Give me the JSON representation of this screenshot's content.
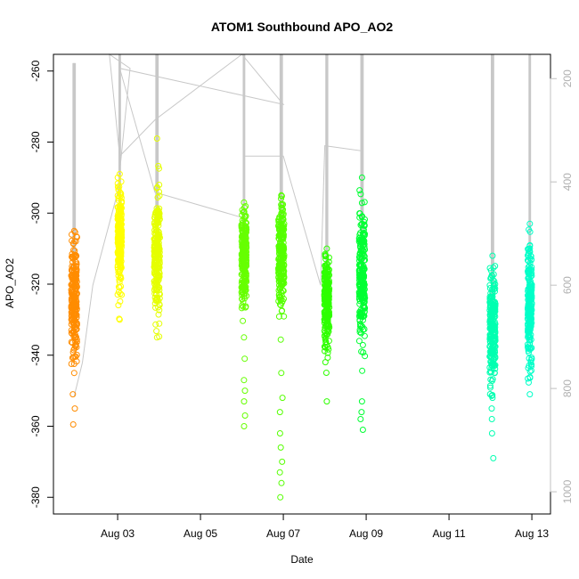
{
  "chart_data": {
    "type": "scatter",
    "title": "ATOM1 Southbound APO_AO2",
    "xlabel": "Date",
    "ylabel": "APO_AO2",
    "x_ticks": [
      "Aug 03",
      "Aug 05",
      "Aug 07",
      "Aug 09",
      "Aug 11",
      "Aug 13"
    ],
    "x_tick_days": [
      3,
      5,
      7,
      9,
      11,
      13
    ],
    "x_range_days": [
      1.45,
      13.45
    ],
    "y_ticks": [
      -380,
      -360,
      -340,
      -320,
      -300,
      -280,
      -260
    ],
    "ylim": [
      -384.7,
      -255.3
    ],
    "y2_ticks": [
      200,
      400,
      600,
      800,
      1000
    ],
    "y2lim": [
      1043,
      153
    ],
    "y2_color": "#c0c0c0",
    "grid": false,
    "clusters": [
      {
        "day": 1.95,
        "width": 0.14,
        "center": -324,
        "spread": 8,
        "min": -345,
        "max": -305,
        "color": "#ff8c00",
        "outliers": [
          -351,
          -355,
          -359.5
        ],
        "profile_top": 170,
        "profile_width": 0.06
      },
      {
        "day": 3.05,
        "width": 0.1,
        "center": -308,
        "spread": 7,
        "min": -330,
        "max": -289,
        "color": "#ffff00",
        "outliers": [],
        "profile_top": 153,
        "profile_width": 0.04
      },
      {
        "day": 3.95,
        "width": 0.14,
        "center": -312,
        "spread": 8,
        "min": -335,
        "max": -279,
        "color": "#e5ff00",
        "outliers": [],
        "profile_top": 153,
        "profile_width": 0.06
      },
      {
        "day": 6.05,
        "width": 0.12,
        "center": -313,
        "spread": 7,
        "min": -335,
        "max": -297,
        "color": "#66ff00",
        "outliers": [
          -341,
          -347,
          -350,
          -353,
          -357,
          -360
        ],
        "profile_top": 153,
        "profile_width": 0.04
      },
      {
        "day": 6.95,
        "width": 0.14,
        "center": -313,
        "spread": 8,
        "min": -345,
        "max": -295,
        "color": "#55ff00",
        "outliers": [
          -352,
          -356,
          -362,
          -366,
          -370,
          -373,
          -376,
          -380
        ],
        "profile_top": 153,
        "profile_width": 0.06
      },
      {
        "day": 8.05,
        "width": 0.12,
        "center": -325,
        "spread": 6,
        "min": -353,
        "max": -310,
        "color": "#2eff00",
        "outliers": [],
        "profile_top": 153,
        "profile_width": 0.05
      },
      {
        "day": 8.9,
        "width": 0.14,
        "center": -318,
        "spread": 9,
        "min": -353,
        "max": -290,
        "color": "#00ff33",
        "outliers": [
          -356,
          -358,
          -361
        ],
        "profile_top": 153,
        "profile_width": 0.06
      },
      {
        "day": 12.05,
        "width": 0.14,
        "center": -333,
        "spread": 8,
        "min": -352,
        "max": -312,
        "color": "#00ffb0",
        "outliers": [
          -355,
          -358,
          -362,
          -369
        ],
        "profile_top": 153,
        "profile_width": 0.06
      },
      {
        "day": 12.95,
        "width": 0.1,
        "center": -327,
        "spread": 8,
        "min": -351,
        "max": -303,
        "color": "#00ffc8",
        "outliers": [],
        "profile_top": 153,
        "profile_width": 0.04
      }
    ],
    "track_line": [
      [
        1.95,
        815
      ],
      [
        2.15,
        750
      ],
      [
        2.4,
        600
      ],
      [
        3.0,
        420
      ],
      [
        3.3,
        180
      ],
      [
        2.8,
        153
      ],
      [
        3.05,
        350
      ],
      [
        3.9,
        280
      ],
      [
        6.0,
        153
      ],
      [
        7.0,
        250
      ],
      [
        3.05,
        180
      ],
      [
        3.9,
        420
      ],
      [
        6.05,
        470
      ],
      [
        6.05,
        350
      ],
      [
        7.0,
        350
      ],
      [
        7.9,
        600
      ],
      [
        8.0,
        330
      ],
      [
        8.9,
        340
      ],
      [
        8.95,
        560
      ]
    ]
  }
}
